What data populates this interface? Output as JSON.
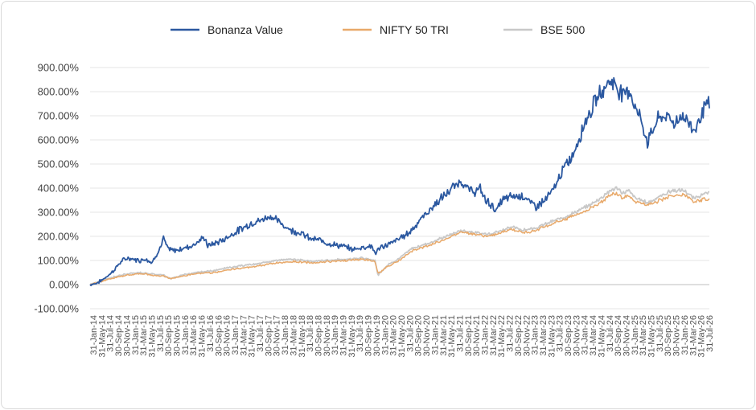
{
  "chart_data": {
    "type": "line",
    "title": "",
    "xlabel": "",
    "ylabel": "",
    "ylim": [
      -100,
      900
    ],
    "y_ticks": [
      "900.00%",
      "800.00%",
      "700.00%",
      "600.00%",
      "500.00%",
      "400.00%",
      "300.00%",
      "200.00%",
      "100.00%",
      "0.00%",
      "-100.00%"
    ],
    "grid": "horizontal",
    "legend_position": "top",
    "x_tick_labels": [
      "31-Jan-14",
      "31-May-14",
      "31-Jul-14",
      "30-Sep-14",
      "30-Nov-14",
      "31-Jan-15",
      "31-Mar-15",
      "31-May-15",
      "31-Jul-15",
      "30-Sep-15",
      "30-Nov-15",
      "31-Jan-16",
      "31-Mar-16",
      "31-May-16",
      "31-Jul-16",
      "30-Sep-16",
      "30-Nov-16",
      "31-Jan-17",
      "31-Mar-17",
      "31-May-17",
      "31-Jul-17",
      "30-Sep-17",
      "30-Nov-17",
      "31-Jan-18",
      "31-Mar-18",
      "31-May-18",
      "31-Jul-18",
      "30-Sep-18",
      "30-Nov-18",
      "31-Jan-19",
      "31-Mar-19",
      "31-May-19",
      "31-Jul-19",
      "30-Sep-19",
      "30-Nov-19",
      "31-Jan-20",
      "31-Mar-20",
      "31-May-20",
      "31-Jul-20",
      "30-Sep-20",
      "30-Nov-20",
      "31-Jan-21",
      "31-Mar-21",
      "31-May-21",
      "31-Jul-21",
      "30-Sep-21",
      "30-Nov-21",
      "31-Jan-22",
      "31-Mar-22",
      "31-May-22",
      "31-Jul-22",
      "30-Sep-22",
      "30-Nov-22",
      "31-Jan-23",
      "31-Mar-23",
      "31-May-23",
      "31-Jul-23",
      "30-Sep-23",
      "30-Nov-23",
      "31-Jan-24",
      "31-Mar-24",
      "31-May-24",
      "31-Jul-24",
      "30-Sep-24",
      "30-Nov-24",
      "31-Jan-25",
      "31-Mar-25",
      "31-May-25",
      "31-Jul-25",
      "30-Sep-25",
      "30-Nov-25",
      "31-Jan-26",
      "31-Mar-26",
      "31-May-26",
      "31-Jul-26"
    ],
    "colors": {
      "bonanza": "#2b58a0",
      "nifty": "#e8a96a",
      "bse": "#c8c8c8",
      "grid": "#e6e6e6",
      "axis": "#bfbfbf"
    },
    "series": [
      {
        "name": "Bonanza Value",
        "key": "bonanza",
        "points": [
          [
            0,
            0
          ],
          [
            0.01,
            5
          ],
          [
            0.02,
            20
          ],
          [
            0.035,
            50
          ],
          [
            0.05,
            95
          ],
          [
            0.06,
            110
          ],
          [
            0.07,
            105
          ],
          [
            0.08,
            100
          ],
          [
            0.09,
            108
          ],
          [
            0.1,
            90
          ],
          [
            0.108,
            130
          ],
          [
            0.115,
            160
          ],
          [
            0.118,
            195
          ],
          [
            0.125,
            150
          ],
          [
            0.135,
            140
          ],
          [
            0.15,
            150
          ],
          [
            0.165,
            162
          ],
          [
            0.175,
            180
          ],
          [
            0.185,
            195
          ],
          [
            0.19,
            160
          ],
          [
            0.2,
            170
          ],
          [
            0.215,
            185
          ],
          [
            0.23,
            210
          ],
          [
            0.25,
            240
          ],
          [
            0.265,
            260
          ],
          [
            0.275,
            265
          ],
          [
            0.29,
            285
          ],
          [
            0.3,
            270
          ],
          [
            0.31,
            250
          ],
          [
            0.325,
            225
          ],
          [
            0.34,
            215
          ],
          [
            0.355,
            190
          ],
          [
            0.37,
            185
          ],
          [
            0.38,
            175
          ],
          [
            0.395,
            165
          ],
          [
            0.41,
            158
          ],
          [
            0.425,
            145
          ],
          [
            0.44,
            155
          ],
          [
            0.455,
            160
          ],
          [
            0.46,
            130
          ],
          [
            0.47,
            155
          ],
          [
            0.485,
            170
          ],
          [
            0.5,
            192
          ],
          [
            0.515,
            215
          ],
          [
            0.53,
            260
          ],
          [
            0.545,
            300
          ],
          [
            0.56,
            340
          ],
          [
            0.575,
            375
          ],
          [
            0.585,
            400
          ],
          [
            0.6,
            430
          ],
          [
            0.61,
            395
          ],
          [
            0.62,
            385
          ],
          [
            0.63,
            395
          ],
          [
            0.64,
            345
          ],
          [
            0.65,
            330
          ],
          [
            0.655,
            300
          ],
          [
            0.665,
            350
          ],
          [
            0.68,
            365
          ],
          [
            0.7,
            370
          ],
          [
            0.71,
            340
          ],
          [
            0.72,
            325
          ],
          [
            0.735,
            350
          ],
          [
            0.75,
            400
          ],
          [
            0.76,
            460
          ],
          [
            0.77,
            500
          ],
          [
            0.78,
            540
          ],
          [
            0.79,
            610
          ],
          [
            0.8,
            680
          ],
          [
            0.81,
            730
          ],
          [
            0.82,
            780
          ],
          [
            0.83,
            815
          ],
          [
            0.84,
            850
          ],
          [
            0.85,
            820
          ],
          [
            0.86,
            790
          ],
          [
            0.87,
            810
          ],
          [
            0.88,
            740
          ],
          [
            0.89,
            680
          ],
          [
            0.9,
            590
          ],
          [
            0.905,
            620
          ],
          [
            0.915,
            680
          ],
          [
            0.925,
            700
          ],
          [
            0.935,
            690
          ],
          [
            0.945,
            670
          ],
          [
            0.955,
            700
          ],
          [
            0.965,
            680
          ],
          [
            0.975,
            640
          ],
          [
            0.985,
            690
          ],
          [
            0.992,
            740
          ],
          [
            1.0,
            745
          ]
        ]
      },
      {
        "name": "NIFTY 50 TRI",
        "key": "nifty",
        "points": [
          [
            0,
            0
          ],
          [
            0.02,
            15
          ],
          [
            0.05,
            35
          ],
          [
            0.08,
            45
          ],
          [
            0.1,
            40
          ],
          [
            0.12,
            35
          ],
          [
            0.13,
            25
          ],
          [
            0.15,
            35
          ],
          [
            0.17,
            45
          ],
          [
            0.2,
            50
          ],
          [
            0.22,
            60
          ],
          [
            0.25,
            70
          ],
          [
            0.28,
            80
          ],
          [
            0.3,
            90
          ],
          [
            0.33,
            95
          ],
          [
            0.36,
            90
          ],
          [
            0.38,
            95
          ],
          [
            0.41,
            100
          ],
          [
            0.44,
            105
          ],
          [
            0.46,
            95
          ],
          [
            0.465,
            45
          ],
          [
            0.48,
            75
          ],
          [
            0.5,
            100
          ],
          [
            0.52,
            140
          ],
          [
            0.55,
            165
          ],
          [
            0.58,
            195
          ],
          [
            0.6,
            220
          ],
          [
            0.62,
            210
          ],
          [
            0.64,
            200
          ],
          [
            0.66,
            210
          ],
          [
            0.68,
            230
          ],
          [
            0.7,
            215
          ],
          [
            0.72,
            225
          ],
          [
            0.75,
            255
          ],
          [
            0.77,
            275
          ],
          [
            0.8,
            305
          ],
          [
            0.82,
            335
          ],
          [
            0.84,
            370
          ],
          [
            0.85,
            380
          ],
          [
            0.86,
            360
          ],
          [
            0.87,
            370
          ],
          [
            0.88,
            345
          ],
          [
            0.9,
            330
          ],
          [
            0.92,
            350
          ],
          [
            0.94,
            370
          ],
          [
            0.96,
            370
          ],
          [
            0.975,
            340
          ],
          [
            0.99,
            355
          ],
          [
            1.0,
            355
          ]
        ]
      },
      {
        "name": "BSE 500",
        "key": "bse",
        "points": [
          [
            0,
            0
          ],
          [
            0.02,
            18
          ],
          [
            0.05,
            40
          ],
          [
            0.08,
            50
          ],
          [
            0.1,
            45
          ],
          [
            0.12,
            38
          ],
          [
            0.13,
            25
          ],
          [
            0.15,
            40
          ],
          [
            0.17,
            50
          ],
          [
            0.2,
            58
          ],
          [
            0.22,
            68
          ],
          [
            0.25,
            80
          ],
          [
            0.28,
            90
          ],
          [
            0.3,
            100
          ],
          [
            0.33,
            105
          ],
          [
            0.36,
            95
          ],
          [
            0.38,
            100
          ],
          [
            0.41,
            105
          ],
          [
            0.44,
            110
          ],
          [
            0.46,
            100
          ],
          [
            0.465,
            40
          ],
          [
            0.48,
            80
          ],
          [
            0.5,
            110
          ],
          [
            0.52,
            150
          ],
          [
            0.55,
            175
          ],
          [
            0.58,
            205
          ],
          [
            0.6,
            225
          ],
          [
            0.62,
            215
          ],
          [
            0.64,
            210
          ],
          [
            0.66,
            220
          ],
          [
            0.68,
            240
          ],
          [
            0.7,
            225
          ],
          [
            0.72,
            235
          ],
          [
            0.75,
            265
          ],
          [
            0.77,
            285
          ],
          [
            0.8,
            320
          ],
          [
            0.82,
            350
          ],
          [
            0.84,
            390
          ],
          [
            0.85,
            400
          ],
          [
            0.86,
            380
          ],
          [
            0.87,
            390
          ],
          [
            0.88,
            360
          ],
          [
            0.9,
            340
          ],
          [
            0.92,
            365
          ],
          [
            0.94,
            390
          ],
          [
            0.96,
            390
          ],
          [
            0.975,
            355
          ],
          [
            0.99,
            375
          ],
          [
            1.0,
            380
          ]
        ]
      }
    ]
  }
}
